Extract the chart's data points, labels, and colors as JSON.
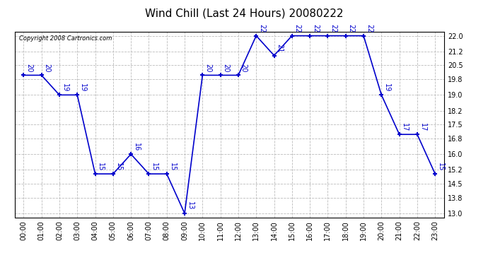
{
  "title": "Wind Chill (Last 24 Hours) 20080222",
  "copyright": "Copyright 2008 Cartronics.com",
  "hours": [
    0,
    1,
    2,
    3,
    4,
    5,
    6,
    7,
    8,
    9,
    10,
    11,
    12,
    13,
    14,
    15,
    16,
    17,
    18,
    19,
    20,
    21,
    22,
    23
  ],
  "x_labels": [
    "00:00",
    "01:00",
    "02:00",
    "03:00",
    "04:00",
    "05:00",
    "06:00",
    "07:00",
    "08:00",
    "09:00",
    "10:00",
    "11:00",
    "12:00",
    "13:00",
    "14:00",
    "15:00",
    "16:00",
    "17:00",
    "18:00",
    "19:00",
    "20:00",
    "21:00",
    "22:00",
    "23:00"
  ],
  "values": [
    20,
    20,
    19,
    19,
    15,
    15,
    16,
    15,
    15,
    13,
    20,
    20,
    20,
    22,
    21,
    22,
    22,
    22,
    22,
    22,
    19,
    17,
    17,
    15
  ],
  "line_color": "#0000cc",
  "marker_color": "#0000cc",
  "bg_color": "#ffffff",
  "plot_bg_color": "#ffffff",
  "grid_color": "#bbbbbb",
  "ylim_min": 13.0,
  "ylim_max": 22.0,
  "yticks": [
    13.0,
    13.8,
    14.5,
    15.2,
    16.0,
    16.8,
    17.5,
    18.2,
    19.0,
    19.8,
    20.5,
    21.2,
    22.0
  ],
  "title_fontsize": 11,
  "label_fontsize": 7,
  "tick_fontsize": 7,
  "copyright_fontsize": 6
}
